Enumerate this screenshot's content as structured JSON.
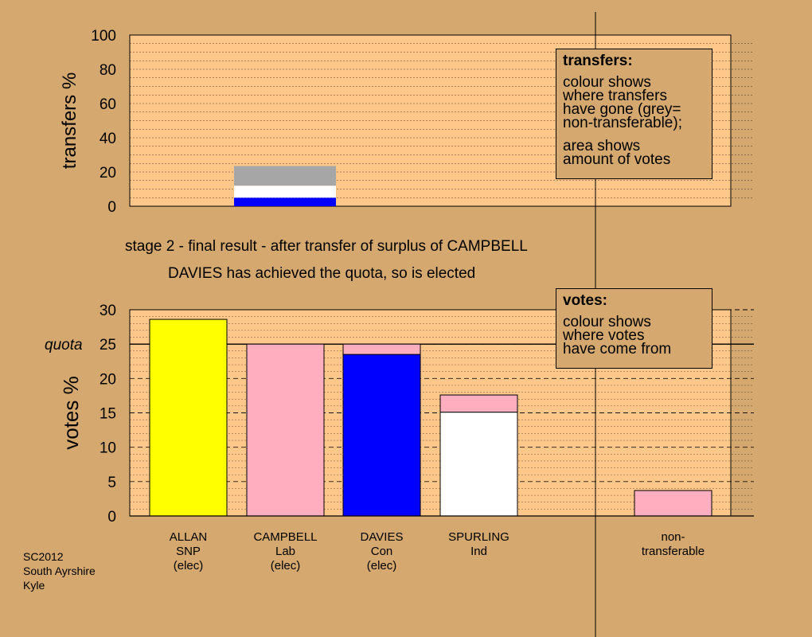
{
  "chart_data": [
    {
      "type": "bar",
      "ylabel": "transfers %",
      "ylim": [
        0,
        100
      ],
      "yticks": [
        0,
        20,
        40,
        60,
        80,
        100
      ],
      "bars": [
        {
          "candidate": "CAMPBELL",
          "segments": [
            {
              "color": "#0000ff",
              "value": 5
            },
            {
              "color": "#ffffff",
              "value": 7
            },
            {
              "color": "#a6a6a6",
              "value": 11.5
            }
          ]
        }
      ],
      "legend": {
        "title": "transfers:",
        "para1": [
          "colour shows",
          "where transfers",
          "have gone (grey=",
          "non-transferable);"
        ],
        "para2": [
          "area shows",
          "amount of votes"
        ]
      }
    },
    {
      "type": "bar",
      "title": "stage 2 - final result - after transfer of surplus of CAMPBELL",
      "subtitle": "DAVIES has achieved the quota, so is elected",
      "ylabel": "votes %",
      "ylim": [
        0,
        30
      ],
      "yticks": [
        0,
        5,
        10,
        15,
        20,
        25,
        30
      ],
      "quota": {
        "label": "quota",
        "value": 25
      },
      "categories": [
        {
          "lines": [
            "ALLAN",
            "SNP",
            "(elec)"
          ],
          "segments": [
            {
              "color": "#ffff00",
              "value": 28.6
            }
          ]
        },
        {
          "lines": [
            "CAMPBELL",
            "Lab",
            "(elec)"
          ],
          "segments": [
            {
              "color": "#ffaec0",
              "value": 25
            }
          ]
        },
        {
          "lines": [
            "DAVIES",
            "Con",
            "(elec)"
          ],
          "segments": [
            {
              "color": "#0000ff",
              "value": 23.5
            },
            {
              "color": "#ffaec0",
              "value": 1.5
            }
          ]
        },
        {
          "lines": [
            "SPURLING",
            "Ind"
          ],
          "segments": [
            {
              "color": "#ffffff",
              "value": 15.1
            },
            {
              "color": "#ffaec0",
              "value": 2.5
            }
          ]
        },
        {
          "lines": [
            "non-",
            "transferable"
          ],
          "segments": [
            {
              "color": "#ffaec0",
              "value": 3.7
            }
          ]
        }
      ],
      "legend": {
        "title": "votes:",
        "para1": [
          "colour shows",
          "where votes",
          "have come from"
        ]
      }
    }
  ],
  "source": [
    "SC2012",
    "South Ayrshire",
    "Kyle"
  ],
  "colors": {
    "background": "#d4a86e",
    "plot_area": "#ffc88a"
  }
}
